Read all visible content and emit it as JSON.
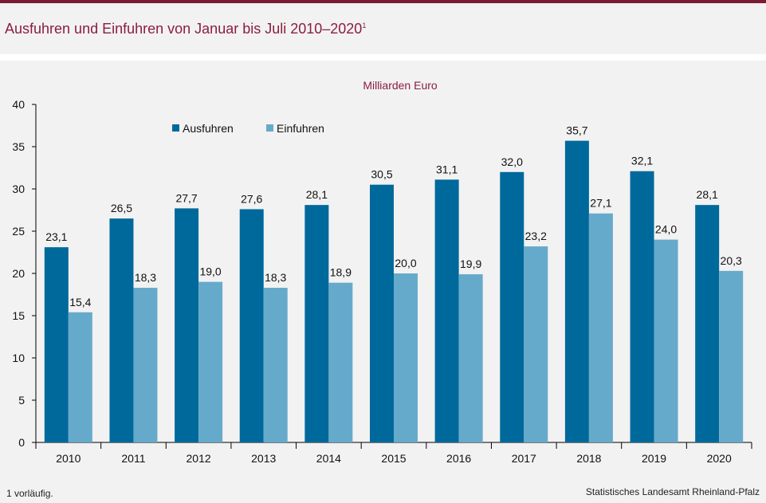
{
  "header": {
    "title": "Ausfuhren und Einfuhren von Januar bis Juli 2010–2020",
    "title_sup": "1"
  },
  "footer": {
    "footnote": "1 vorläufig.",
    "source": "Statistisches Landesamt Rheinland-Pfalz"
  },
  "colors": {
    "accent": "#7a1a33",
    "title": "#8b1e3f",
    "ausfuhren": "#00699b",
    "einfuhren": "#66aacb"
  },
  "chart_data": {
    "type": "bar",
    "title": "",
    "unit_label": "Milliarden Euro",
    "xlabel": "",
    "ylabel": "",
    "categories": [
      "2010",
      "2011",
      "2012",
      "2013",
      "2014",
      "2015",
      "2016",
      "2017",
      "2018",
      "2019",
      "2020"
    ],
    "series": [
      {
        "name": "Ausfuhren",
        "values": [
          23.1,
          26.5,
          27.7,
          27.6,
          28.1,
          30.5,
          31.1,
          32.0,
          35.7,
          32.1,
          28.1
        ],
        "labels": [
          "23,1",
          "26,5",
          "27,7",
          "27,6",
          "28,1",
          "30,5",
          "31,1",
          "32,0",
          "35,7",
          "32,1",
          "28,1"
        ]
      },
      {
        "name": "Einfuhren",
        "values": [
          15.4,
          18.3,
          19.0,
          18.3,
          18.9,
          20.0,
          19.9,
          23.2,
          27.1,
          24.0,
          20.3
        ],
        "labels": [
          "15,4",
          "18,3",
          "19,0",
          "18,3",
          "18,9",
          "20,0",
          "19,9",
          "23,2",
          "27,1",
          "24,0",
          "20,3"
        ]
      }
    ],
    "ylim": [
      0,
      40
    ],
    "yticks": [
      0,
      5,
      10,
      15,
      20,
      25,
      30,
      35,
      40
    ],
    "grid": false,
    "legend_position": "top-left"
  }
}
